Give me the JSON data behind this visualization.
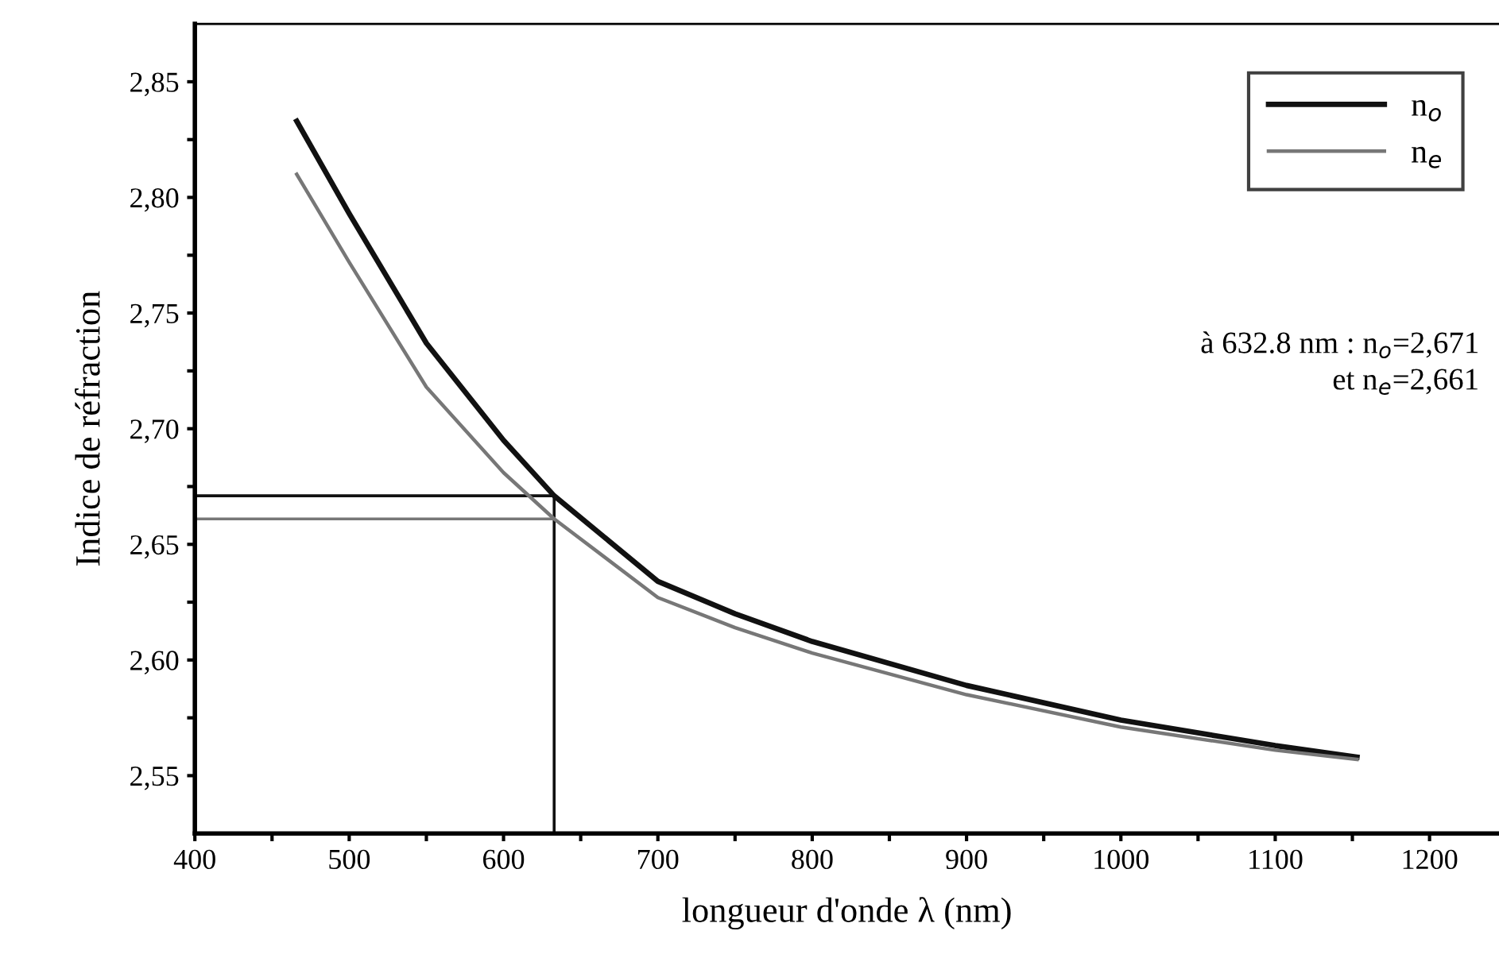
{
  "chart_data": {
    "type": "line",
    "xlabel": "longueur d'onde λ (nm)",
    "ylabel": "Indice de réfraction",
    "x": [
      466,
      500,
      550,
      600,
      632.8,
      700,
      750,
      800,
      900,
      1000,
      1100,
      1153
    ],
    "series": [
      {
        "name": "n$_{o}$",
        "color": "#111111",
        "values": [
          2.833,
          2.793,
          2.737,
          2.695,
          2.671,
          2.634,
          2.62,
          2.608,
          2.589,
          2.574,
          2.563,
          2.558
        ]
      },
      {
        "name": "n$_{e}$",
        "color": "#777777",
        "values": [
          2.81,
          2.772,
          2.718,
          2.681,
          2.661,
          2.627,
          2.614,
          2.603,
          2.585,
          2.571,
          2.561,
          2.557
        ]
      }
    ],
    "xlim": [
      400,
      1245
    ],
    "ylim": [
      2.525,
      2.875
    ],
    "xticks": [
      400,
      {
        "value": 450,
        "label": null
      },
      500,
      {
        "value": 550,
        "label": null
      },
      600,
      {
        "value": 650,
        "label": null
      },
      700,
      {
        "value": 750,
        "label": null
      },
      800,
      {
        "value": 850,
        "label": null
      },
      900,
      {
        "value": 950,
        "label": null
      },
      1000,
      {
        "value": 1050,
        "label": null
      },
      1100,
      {
        "value": 1150,
        "label": null
      },
      1200
    ],
    "yticks": [
      {
        "value": 2.55,
        "label": "2,55"
      },
      {
        "value": 2.575,
        "label": null
      },
      {
        "value": 2.6,
        "label": "2,60"
      },
      {
        "value": 2.625,
        "label": null
      },
      {
        "value": 2.65,
        "label": "2,65"
      },
      {
        "value": 2.675,
        "label": null
      },
      {
        "value": 2.7,
        "label": "2,70"
      },
      {
        "value": 2.725,
        "label": null
      },
      {
        "value": 2.75,
        "label": "2,75"
      },
      {
        "value": 2.775,
        "label": null
      },
      {
        "value": 2.8,
        "label": "2,80"
      },
      {
        "value": 2.825,
        "label": null
      },
      {
        "value": 2.85,
        "label": "2,85"
      }
    ],
    "ref_lines": [
      {
        "axis": "x",
        "value": 632.8,
        "color": "#111111"
      },
      {
        "axis": "y",
        "value": 2.671,
        "color": "#111111"
      },
      {
        "axis": "y",
        "value": 2.661,
        "color": "#777777"
      }
    ],
    "annotations": [
      "à 632.8 nm : n$_{o}$=2,671\net n$_{e}$=2,661"
    ],
    "legend": "top right",
    "grid": false,
    "marker": "none",
    "line_style": "solid"
  }
}
